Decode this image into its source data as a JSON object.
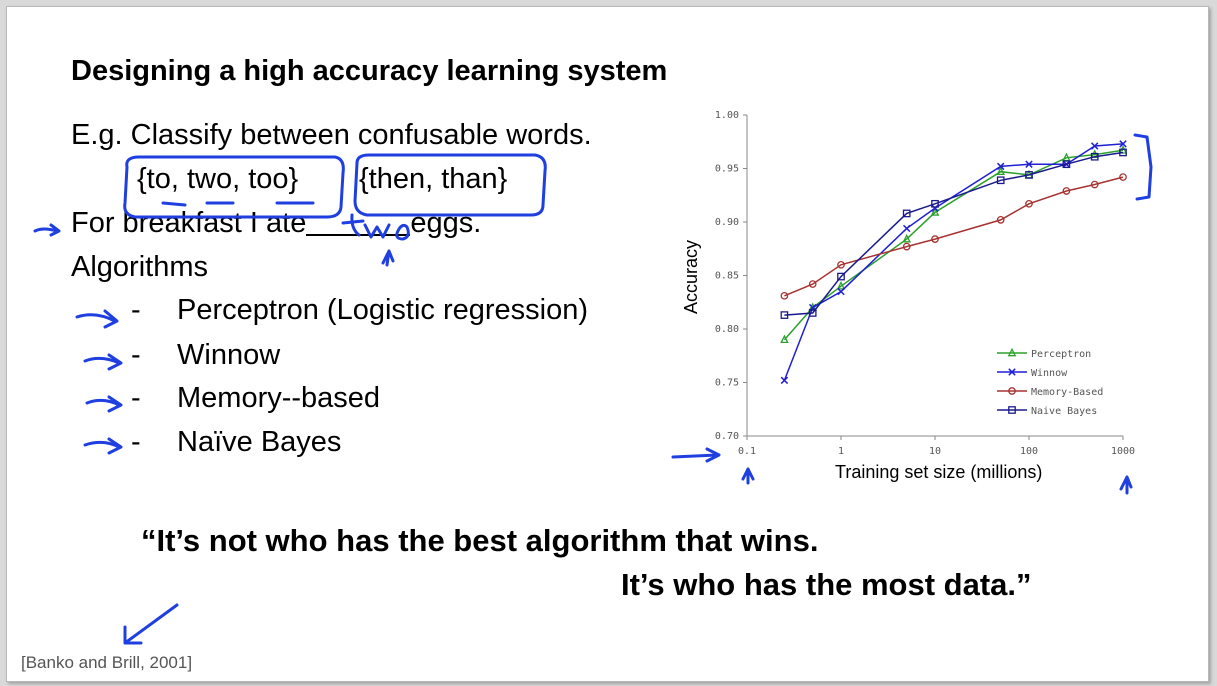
{
  "slide": {
    "title": "Designing a high accuracy learning system",
    "example_line": "E.g. Classify between confusable words.",
    "set1": "{to, two, too}",
    "set2": "{then, than}",
    "sentence_pre": "For breakfast I ate",
    "sentence_post": "eggs.",
    "handwritten_answer": "two",
    "algorithms_heading": "Algorithms",
    "algorithms": [
      {
        "dash": "-",
        "label": "Perceptron (Logistic regression)"
      },
      {
        "dash": "-",
        "label": "Winnow"
      },
      {
        "dash": "-",
        "label": "Memory--based"
      },
      {
        "dash": "-",
        "label": "Naïve Bayes"
      }
    ],
    "quote_line1": "“It’s not who has the best algorithm that wins.",
    "quote_line2": "It’s who has the most data.”",
    "citation": "[Banko and Brill, 2001]",
    "annotation_color": "#1f3fe0"
  },
  "chart_data": {
    "type": "line",
    "xlabel": "Training set size (millions)",
    "ylabel": "Accuracy",
    "xscale": "log",
    "xlim": [
      0.1,
      1000
    ],
    "ylim": [
      0.7,
      1.0
    ],
    "xticks": [
      {
        "v": 0.1,
        "label": "0.1"
      },
      {
        "v": 1,
        "label": "1"
      },
      {
        "v": 10,
        "label": "10"
      },
      {
        "v": 100,
        "label": "100"
      },
      {
        "v": 1000,
        "label": "1000"
      }
    ],
    "yticks": [
      {
        "v": 0.7,
        "label": "0.70"
      },
      {
        "v": 0.75,
        "label": "0.75"
      },
      {
        "v": 0.8,
        "label": "0.80"
      },
      {
        "v": 0.85,
        "label": "0.85"
      },
      {
        "v": 0.9,
        "label": "0.90"
      },
      {
        "v": 0.95,
        "label": "0.95"
      },
      {
        "v": 1.0,
        "label": "1.00"
      }
    ],
    "legend_position": "bottom-right",
    "series": [
      {
        "name": "Perceptron",
        "marker": "triangle",
        "color": "#2ca02c",
        "points": [
          [
            0.25,
            0.79
          ],
          [
            0.5,
            0.82
          ],
          [
            1,
            0.84
          ],
          [
            5,
            0.884
          ],
          [
            10,
            0.909
          ],
          [
            50,
            0.947
          ],
          [
            100,
            0.944
          ],
          [
            250,
            0.96
          ],
          [
            500,
            0.963
          ],
          [
            1000,
            0.967
          ]
        ]
      },
      {
        "name": "Winnow",
        "marker": "x",
        "color": "#1f1fd6",
        "points": [
          [
            0.25,
            0.752
          ],
          [
            0.5,
            0.82
          ],
          [
            1,
            0.835
          ],
          [
            5,
            0.894
          ],
          [
            10,
            0.913
          ],
          [
            50,
            0.952
          ],
          [
            100,
            0.954
          ],
          [
            250,
            0.954
          ],
          [
            500,
            0.971
          ],
          [
            1000,
            0.973
          ]
        ]
      },
      {
        "name": "Memory-Based",
        "marker": "circle",
        "color": "#a83232",
        "points": [
          [
            0.25,
            0.831
          ],
          [
            0.5,
            0.842
          ],
          [
            1,
            0.86
          ],
          [
            5,
            0.877
          ],
          [
            10,
            0.884
          ],
          [
            50,
            0.902
          ],
          [
            100,
            0.917
          ],
          [
            250,
            0.929
          ],
          [
            500,
            0.935
          ],
          [
            1000,
            0.942
          ]
        ]
      },
      {
        "name": "Naive Bayes",
        "marker": "square",
        "color": "#1a1a8c",
        "points": [
          [
            0.25,
            0.813
          ],
          [
            0.5,
            0.815
          ],
          [
            1,
            0.849
          ],
          [
            5,
            0.908
          ],
          [
            10,
            0.917
          ],
          [
            50,
            0.939
          ],
          [
            100,
            0.944
          ],
          [
            250,
            0.954
          ],
          [
            500,
            0.961
          ],
          [
            1000,
            0.965
          ]
        ]
      }
    ]
  }
}
